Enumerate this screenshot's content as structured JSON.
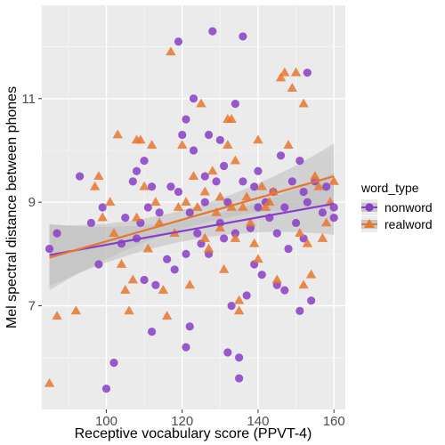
{
  "chart_data": {
    "type": "scatter",
    "title": "",
    "xlabel": "Receptive vocabulary score (PPVT-4)",
    "ylabel": "Mel spectral distance between phones",
    "xlim": [
      83,
      163
    ],
    "ylim": [
      5.0,
      12.8
    ],
    "x_ticks": [
      100,
      120,
      140,
      160
    ],
    "y_ticks": [
      7,
      9,
      11
    ],
    "grid": true,
    "legend": {
      "title": "word_type",
      "position": "right",
      "entries": [
        "nonword",
        "realword"
      ]
    },
    "colors": {
      "nonword": "#8a3ec7",
      "realword": "#e8772e",
      "panel": "#ebebeb",
      "band": "#bdbdbd"
    },
    "series": [
      {
        "name": "nonword",
        "marker": "circle",
        "fit": {
          "x": [
            85,
            160
          ],
          "y": [
            7.98,
            8.97
          ]
        },
        "points": [
          [
            85,
            8.1
          ],
          [
            87,
            8.4
          ],
          [
            93,
            9.5
          ],
          [
            96,
            8.6
          ],
          [
            98,
            7.8
          ],
          [
            99,
            8.9
          ],
          [
            100,
            5.4
          ],
          [
            102,
            5.9
          ],
          [
            104,
            8.2
          ],
          [
            105,
            8.7
          ],
          [
            107,
            9.4
          ],
          [
            108,
            8.3
          ],
          [
            108,
            9.6
          ],
          [
            109,
            8.6
          ],
          [
            110,
            7.5
          ],
          [
            110,
            9.8
          ],
          [
            111,
            8.9
          ],
          [
            112,
            6.5
          ],
          [
            113,
            7.4
          ],
          [
            114,
            8.8
          ],
          [
            116,
            7.9
          ],
          [
            117,
            9.3
          ],
          [
            118,
            7.7
          ],
          [
            119,
            9.2
          ],
          [
            119,
            12.1
          ],
          [
            120,
            10.3
          ],
          [
            121,
            10.6
          ],
          [
            121,
            8.0
          ],
          [
            121,
            6.2
          ],
          [
            122,
            6.6
          ],
          [
            122,
            8.8
          ],
          [
            123,
            10.0
          ],
          [
            123,
            11.0
          ],
          [
            124,
            8.4
          ],
          [
            125,
            8.2
          ],
          [
            126,
            9.5
          ],
          [
            127,
            10.3
          ],
          [
            127,
            8.0
          ],
          [
            128,
            12.3
          ],
          [
            129,
            9.4
          ],
          [
            130,
            10.2
          ],
          [
            130,
            8.6
          ],
          [
            131,
            8.3
          ],
          [
            132,
            6.1
          ],
          [
            132,
            9.0
          ],
          [
            133,
            7.0
          ],
          [
            134,
            8.4
          ],
          [
            134,
            10.9
          ],
          [
            135,
            6.0
          ],
          [
            135,
            5.6
          ],
          [
            136,
            9.4
          ],
          [
            136,
            12.2
          ],
          [
            137,
            7.2
          ],
          [
            138,
            8.5
          ],
          [
            139,
            9.3
          ],
          [
            139,
            7.8
          ],
          [
            140,
            9.6
          ],
          [
            140,
            8.9
          ],
          [
            141,
            7.6
          ],
          [
            142,
            9.0
          ],
          [
            143,
            8.7
          ],
          [
            144,
            9.2
          ],
          [
            145,
            7.4
          ],
          [
            145,
            8.4
          ],
          [
            146,
            9.9
          ],
          [
            147,
            8.9
          ],
          [
            147,
            7.3
          ],
          [
            148,
            8.1
          ],
          [
            149,
            9.4
          ],
          [
            150,
            8.6
          ],
          [
            151,
            6.9
          ],
          [
            151,
            9.8
          ],
          [
            152,
            9.2
          ],
          [
            152,
            8.3
          ],
          [
            153,
            11.5
          ],
          [
            153,
            9.0
          ],
          [
            154,
            7.1
          ],
          [
            155,
            9.4
          ],
          [
            157,
            8.8
          ],
          [
            158,
            9.3
          ],
          [
            160,
            8.7
          ],
          [
            160,
            8.9
          ],
          [
            112,
            9.3
          ],
          [
            126,
            9.0
          ],
          [
            131,
            9.7
          ]
        ]
      },
      {
        "name": "realword",
        "marker": "triangle",
        "fit": {
          "x": [
            85,
            160
          ],
          "y": [
            7.93,
            9.5
          ]
        },
        "points": [
          [
            85,
            5.5
          ],
          [
            87,
            6.8
          ],
          [
            92,
            6.9
          ],
          [
            97,
            9.3
          ],
          [
            98,
            9.5
          ],
          [
            99,
            8.7
          ],
          [
            101,
            9.0
          ],
          [
            102,
            8.4
          ],
          [
            103,
            10.3
          ],
          [
            104,
            7.8
          ],
          [
            105,
            7.3
          ],
          [
            106,
            6.9
          ],
          [
            107,
            7.5
          ],
          [
            108,
            10.2
          ],
          [
            108,
            8.7
          ],
          [
            109,
            10.2
          ],
          [
            110,
            9.3
          ],
          [
            111,
            8.1
          ],
          [
            112,
            10.1
          ],
          [
            113,
            9.0
          ],
          [
            114,
            8.6
          ],
          [
            115,
            7.3
          ],
          [
            116,
            6.8
          ],
          [
            117,
            11.9
          ],
          [
            118,
            8.4
          ],
          [
            119,
            8.9
          ],
          [
            120,
            10.1
          ],
          [
            121,
            9.0
          ],
          [
            122,
            7.4
          ],
          [
            123,
            9.5
          ],
          [
            124,
            8.9
          ],
          [
            125,
            10.9
          ],
          [
            126,
            8.3
          ],
          [
            127,
            8.1
          ],
          [
            128,
            9.6
          ],
          [
            129,
            8.8
          ],
          [
            130,
            8.5
          ],
          [
            130,
            9.1
          ],
          [
            131,
            7.7
          ],
          [
            132,
            10.1
          ],
          [
            132,
            10.6
          ],
          [
            133,
            8.9
          ],
          [
            133,
            10.6
          ],
          [
            134,
            8.3
          ],
          [
            135,
            6.9
          ],
          [
            135,
            7.1
          ],
          [
            136,
            8.9
          ],
          [
            137,
            9.1
          ],
          [
            138,
            8.6
          ],
          [
            139,
            8.2
          ],
          [
            140,
            10.2
          ],
          [
            140,
            7.9
          ],
          [
            141,
            9.3
          ],
          [
            142,
            8.9
          ],
          [
            143,
            9.0
          ],
          [
            144,
            9.2
          ],
          [
            145,
            7.5
          ],
          [
            146,
            11.4
          ],
          [
            147,
            11.5
          ],
          [
            148,
            10.1
          ],
          [
            149,
            11.2
          ],
          [
            150,
            11.5
          ],
          [
            151,
            8.4
          ],
          [
            152,
            7.4
          ],
          [
            152,
            10.9
          ],
          [
            153,
            8.2
          ],
          [
            154,
            7.6
          ],
          [
            155,
            9.5
          ],
          [
            156,
            9.3
          ],
          [
            157,
            8.3
          ],
          [
            158,
            8.6
          ],
          [
            159,
            9.0
          ],
          [
            160,
            9.4
          ],
          [
            134,
            9.8
          ],
          [
            126,
            9.2
          ]
        ]
      }
    ]
  }
}
